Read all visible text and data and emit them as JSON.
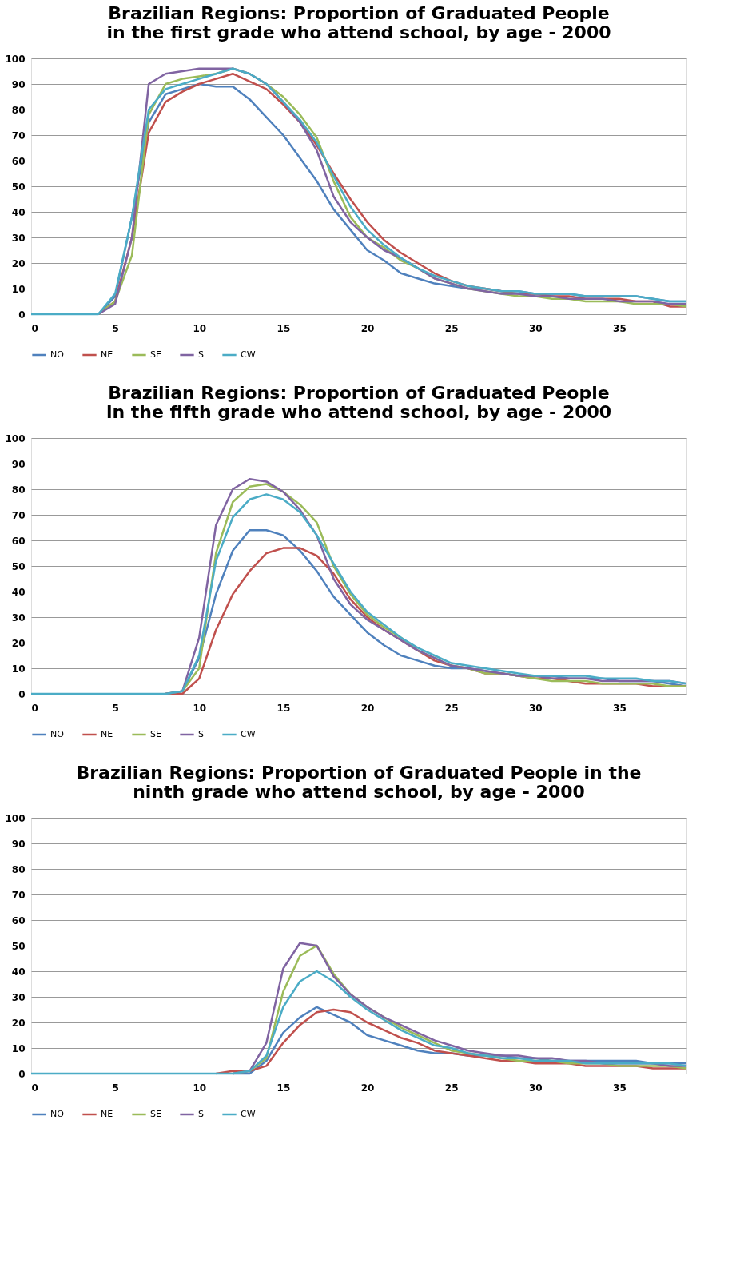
{
  "chart_data": [
    {
      "type": "line",
      "title": "Brazilian Regions: Proportion of Graduated People\nin the first grade who attend school, by age - 2000",
      "x": [
        0,
        1,
        2,
        3,
        4,
        5,
        6,
        7,
        8,
        9,
        10,
        11,
        12,
        13,
        14,
        15,
        16,
        17,
        18,
        19,
        20,
        21,
        22,
        23,
        24,
        25,
        26,
        27,
        28,
        29,
        30,
        31,
        32,
        33,
        34,
        35,
        36,
        37,
        38,
        39
      ],
      "xlim": [
        0,
        39
      ],
      "xticks": [
        0,
        5,
        10,
        15,
        20,
        25,
        30,
        35
      ],
      "ylim": [
        0,
        100
      ],
      "yticks": [
        0,
        10,
        20,
        30,
        40,
        50,
        60,
        70,
        80,
        90,
        100
      ],
      "grid": "y",
      "legend": "bottom",
      "marker": "none",
      "line_style": "solid",
      "series": [
        {
          "name": "NO",
          "color": "#4f81bd",
          "values": [
            null,
            null,
            null,
            null,
            0,
            7,
            38,
            75,
            86,
            88,
            90,
            89,
            89,
            84,
            77,
            70,
            61,
            52,
            41,
            33,
            25,
            21,
            16,
            14,
            12,
            11,
            10,
            10,
            9,
            9,
            8,
            8,
            8,
            7,
            7,
            7,
            7,
            6,
            5,
            5
          ]
        },
        {
          "name": "NE",
          "color": "#c0504d",
          "values": [
            null,
            null,
            null,
            null,
            0,
            5,
            30,
            71,
            83,
            87,
            90,
            92,
            94,
            91,
            88,
            82,
            75,
            66,
            55,
            45,
            36,
            29,
            24,
            20,
            16,
            13,
            11,
            10,
            9,
            8,
            8,
            7,
            7,
            6,
            6,
            6,
            5,
            5,
            3,
            3
          ]
        },
        {
          "name": "SE",
          "color": "#9bbb59",
          "values": [
            null,
            null,
            null,
            null,
            0,
            5,
            23,
            78,
            90,
            92,
            93,
            94,
            96,
            94,
            90,
            85,
            78,
            69,
            52,
            38,
            30,
            26,
            21,
            18,
            14,
            12,
            10,
            9,
            8,
            7,
            7,
            6,
            6,
            5,
            5,
            5,
            4,
            4,
            4,
            3
          ]
        },
        {
          "name": "S",
          "color": "#8064a2",
          "values": [
            null,
            null,
            null,
            null,
            0,
            4,
            30,
            90,
            94,
            95,
            96,
            96,
            96,
            94,
            90,
            83,
            75,
            64,
            46,
            36,
            30,
            25,
            22,
            18,
            14,
            12,
            10,
            9,
            8,
            8,
            7,
            7,
            6,
            6,
            6,
            5,
            5,
            5,
            4,
            4
          ]
        },
        {
          "name": "CW",
          "color": "#4bacc6",
          "values": [
            0,
            0,
            0,
            0,
            0,
            8,
            38,
            80,
            88,
            90,
            92,
            94,
            96,
            94,
            90,
            83,
            76,
            67,
            54,
            42,
            33,
            27,
            22,
            18,
            15,
            13,
            11,
            10,
            9,
            9,
            8,
            8,
            8,
            7,
            7,
            7,
            7,
            6,
            5,
            5
          ]
        }
      ]
    },
    {
      "type": "line",
      "title": "Brazilian Regions: Proportion of Graduated People\nin the fifth grade who attend school, by age - 2000",
      "x": [
        0,
        1,
        2,
        3,
        4,
        5,
        6,
        7,
        8,
        9,
        10,
        11,
        12,
        13,
        14,
        15,
        16,
        17,
        18,
        19,
        20,
        21,
        22,
        23,
        24,
        25,
        26,
        27,
        28,
        29,
        30,
        31,
        32,
        33,
        34,
        35,
        36,
        37,
        38,
        39
      ],
      "xlim": [
        0,
        39
      ],
      "xticks": [
        0,
        5,
        10,
        15,
        20,
        25,
        30,
        35
      ],
      "ylim": [
        0,
        100
      ],
      "yticks": [
        0,
        10,
        20,
        30,
        40,
        50,
        60,
        70,
        80,
        90,
        100
      ],
      "grid": "y",
      "legend": "bottom",
      "marker": "none",
      "line_style": "solid",
      "series": [
        {
          "name": "NO",
          "color": "#4f81bd",
          "values": [
            null,
            null,
            null,
            null,
            null,
            null,
            null,
            null,
            0,
            1,
            14,
            39,
            56,
            64,
            64,
            62,
            56,
            48,
            38,
            31,
            24,
            19,
            15,
            13,
            11,
            10,
            10,
            9,
            8,
            7,
            7,
            7,
            6,
            6,
            6,
            5,
            5,
            5,
            4,
            3
          ]
        },
        {
          "name": "NE",
          "color": "#c0504d",
          "values": [
            null,
            null,
            null,
            null,
            null,
            null,
            null,
            null,
            0,
            0,
            6,
            25,
            39,
            48,
            55,
            57,
            57,
            54,
            47,
            37,
            30,
            25,
            21,
            17,
            13,
            11,
            10,
            8,
            8,
            7,
            6,
            6,
            5,
            4,
            4,
            4,
            4,
            3,
            3,
            3
          ]
        },
        {
          "name": "SE",
          "color": "#9bbb59",
          "values": [
            null,
            null,
            null,
            null,
            null,
            null,
            null,
            null,
            0,
            1,
            10,
            55,
            75,
            81,
            82,
            79,
            74,
            67,
            50,
            39,
            31,
            26,
            22,
            17,
            14,
            11,
            10,
            8,
            8,
            7,
            6,
            5,
            5,
            5,
            4,
            4,
            4,
            4,
            3,
            3
          ]
        },
        {
          "name": "S",
          "color": "#8064a2",
          "values": [
            null,
            null,
            null,
            null,
            null,
            null,
            null,
            null,
            0,
            1,
            22,
            66,
            80,
            84,
            83,
            79,
            72,
            62,
            45,
            35,
            29,
            25,
            21,
            17,
            14,
            11,
            10,
            9,
            8,
            7,
            7,
            6,
            6,
            6,
            5,
            5,
            5,
            5,
            5,
            4
          ]
        },
        {
          "name": "CW",
          "color": "#4bacc6",
          "values": [
            0,
            0,
            0,
            0,
            0,
            0,
            0,
            0,
            0,
            1,
            15,
            52,
            69,
            76,
            78,
            76,
            71,
            62,
            51,
            40,
            32,
            27,
            22,
            18,
            15,
            12,
            11,
            10,
            9,
            8,
            7,
            7,
            7,
            7,
            6,
            6,
            6,
            5,
            5,
            4
          ]
        }
      ]
    },
    {
      "type": "line",
      "title": "Brazilian Regions: Proportion of Graduated People in the\nninth grade who attend school, by age - 2000",
      "x": [
        0,
        1,
        2,
        3,
        4,
        5,
        6,
        7,
        8,
        9,
        10,
        11,
        12,
        13,
        14,
        15,
        16,
        17,
        18,
        19,
        20,
        21,
        22,
        23,
        24,
        25,
        26,
        27,
        28,
        29,
        30,
        31,
        32,
        33,
        34,
        35,
        36,
        37,
        38,
        39
      ],
      "xlim": [
        0,
        39
      ],
      "xticks": [
        0,
        5,
        10,
        15,
        20,
        25,
        30,
        35
      ],
      "ylim": [
        0,
        100
      ],
      "yticks": [
        0,
        10,
        20,
        30,
        40,
        50,
        60,
        70,
        80,
        90,
        100
      ],
      "grid": "y",
      "legend": "bottom",
      "marker": "none",
      "line_style": "solid",
      "series": [
        {
          "name": "NO",
          "color": "#4f81bd",
          "values": [
            null,
            null,
            null,
            null,
            null,
            null,
            null,
            null,
            null,
            null,
            null,
            null,
            0,
            0,
            5,
            16,
            22,
            26,
            23,
            20,
            15,
            13,
            11,
            9,
            8,
            8,
            7,
            7,
            7,
            6,
            6,
            5,
            5,
            5,
            5,
            5,
            5,
            4,
            4,
            4
          ]
        },
        {
          "name": "NE",
          "color": "#c0504d",
          "values": [
            null,
            null,
            null,
            null,
            null,
            null,
            null,
            null,
            null,
            null,
            null,
            0,
            1,
            1,
            3,
            12,
            19,
            24,
            25,
            24,
            20,
            17,
            14,
            12,
            9,
            8,
            7,
            6,
            5,
            5,
            4,
            4,
            4,
            3,
            3,
            3,
            3,
            2,
            2,
            2
          ]
        },
        {
          "name": "SE",
          "color": "#9bbb59",
          "values": [
            null,
            null,
            null,
            null,
            null,
            null,
            null,
            null,
            null,
            null,
            null,
            null,
            0,
            1,
            6,
            32,
            46,
            50,
            39,
            31,
            26,
            22,
            18,
            15,
            12,
            9,
            8,
            7,
            6,
            5,
            5,
            5,
            4,
            4,
            4,
            3,
            3,
            3,
            3,
            2
          ]
        },
        {
          "name": "S",
          "color": "#8064a2",
          "values": [
            null,
            null,
            null,
            null,
            null,
            null,
            null,
            null,
            null,
            null,
            null,
            null,
            0,
            1,
            12,
            41,
            51,
            50,
            38,
            31,
            26,
            22,
            19,
            16,
            13,
            11,
            9,
            8,
            7,
            7,
            6,
            6,
            5,
            5,
            4,
            4,
            4,
            4,
            3,
            3
          ]
        },
        {
          "name": "CW",
          "color": "#4bacc6",
          "values": [
            0,
            0,
            0,
            0,
            0,
            0,
            0,
            0,
            0,
            0,
            0,
            0,
            0,
            1,
            7,
            26,
            36,
            40,
            36,
            30,
            25,
            21,
            17,
            14,
            11,
            10,
            8,
            7,
            6,
            6,
            5,
            5,
            5,
            4,
            4,
            4,
            4,
            4,
            4,
            3
          ]
        }
      ]
    }
  ]
}
